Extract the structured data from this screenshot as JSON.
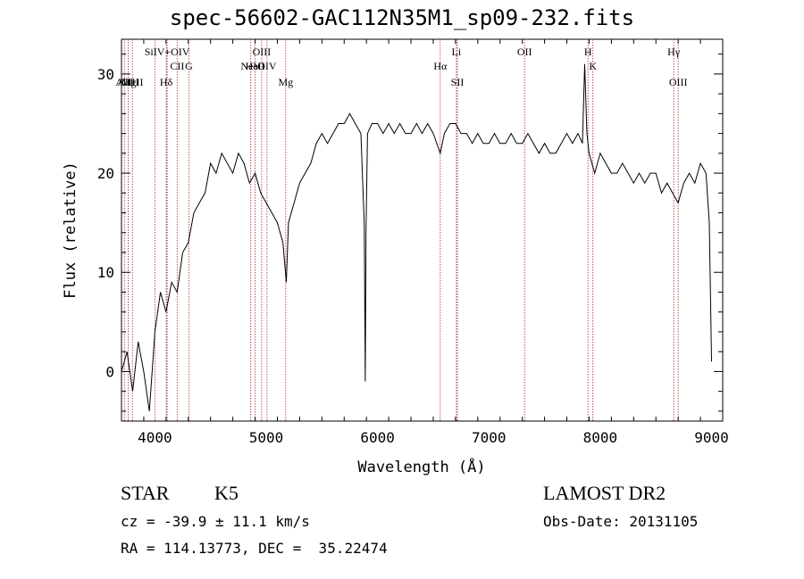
{
  "chart_data": {
    "type": "line",
    "title": "spec-56602-GAC112N35M1_sp09-232.fits",
    "xlabel": "Wavelength (Å)",
    "ylabel": "Flux (relative)",
    "xlim": [
      3700,
      9100
    ],
    "ylim": [
      -5,
      33.5
    ],
    "x_ticks": [
      4000,
      5000,
      6000,
      7000,
      8000,
      9000
    ],
    "y_ticks": [
      0,
      10,
      20,
      30
    ],
    "grid": false,
    "series": [
      {
        "x": [
          3700,
          3750,
          3800,
          3850,
          3900,
          3950,
          4000,
          4050,
          4100,
          4150,
          4200,
          4250,
          4300,
          4350,
          4400,
          4450,
          4500,
          4550,
          4600,
          4650,
          4700,
          4750,
          4800,
          4850,
          4900,
          4950,
          5000,
          5050,
          5100,
          5150,
          5180,
          5200,
          5250,
          5300,
          5350,
          5400,
          5450,
          5500,
          5550,
          5600,
          5650,
          5700,
          5750,
          5800,
          5850,
          5880,
          5890,
          5896,
          5910,
          5950,
          6000,
          6050,
          6100,
          6150,
          6200,
          6250,
          6300,
          6350,
          6400,
          6450,
          6500,
          6563,
          6600,
          6650,
          6700,
          6750,
          6800,
          6850,
          6900,
          6950,
          7000,
          7050,
          7100,
          7150,
          7200,
          7250,
          7300,
          7350,
          7400,
          7450,
          7500,
          7550,
          7600,
          7650,
          7700,
          7750,
          7800,
          7840,
          7860,
          7880,
          7900,
          7950,
          8000,
          8050,
          8100,
          8150,
          8200,
          8250,
          8300,
          8350,
          8400,
          8450,
          8500,
          8550,
          8600,
          8650,
          8700,
          8750,
          8800,
          8850,
          8900,
          8950,
          8980,
          9000
        ],
        "y": [
          0,
          2,
          -2,
          3,
          0,
          -4,
          4,
          8,
          6,
          9,
          8,
          12,
          13,
          16,
          17,
          18,
          21,
          20,
          22,
          21,
          20,
          22,
          21,
          19,
          20,
          18,
          17,
          16,
          15,
          13,
          9,
          15,
          17,
          19,
          20,
          21,
          23,
          24,
          23,
          24,
          25,
          25,
          26,
          25,
          24,
          15,
          -1,
          14,
          24,
          25,
          25,
          24,
          25,
          24,
          25,
          24,
          24,
          25,
          24,
          25,
          24,
          22,
          24,
          25,
          25,
          24,
          24,
          23,
          24,
          23,
          23,
          24,
          23,
          23,
          24,
          23,
          23,
          24,
          23,
          22,
          23,
          22,
          22,
          23,
          24,
          23,
          24,
          23,
          31,
          24,
          22,
          20,
          22,
          21,
          20,
          20,
          21,
          20,
          19,
          20,
          19,
          20,
          20,
          18,
          19,
          18,
          17,
          19,
          20,
          19,
          21,
          20,
          15,
          1
        ]
      }
    ],
    "lines": [
      {
        "x": 3727,
        "label": "AlII",
        "row": 3
      },
      {
        "x": 3760,
        "label": "AlIII",
        "row": 3
      },
      {
        "x": 3798,
        "label": "MgII",
        "row": 3
      },
      {
        "x": 4000,
        "label": "",
        "row": 0
      },
      {
        "x": 4102,
        "label": "Hδ",
        "row": 3
      },
      {
        "x": 4110,
        "label": "SiIV+OIV",
        "row": 1
      },
      {
        "x": 4200,
        "label": "CII",
        "row": 2
      },
      {
        "x": 4305,
        "label": "G",
        "row": 2
      },
      {
        "x": 4861,
        "label": "NeV",
        "row": 2
      },
      {
        "x": 4900,
        "label": "HeII",
        "row": 2
      },
      {
        "x": 4959,
        "label": "OIII",
        "row": 1
      },
      {
        "x": 5007,
        "label": "OIV",
        "row": 2
      },
      {
        "x": 5175,
        "label": "Mg",
        "row": 3
      },
      {
        "x": 6563,
        "label": "Hα",
        "row": 2
      },
      {
        "x": 6708,
        "label": "Li",
        "row": 1
      },
      {
        "x": 6717,
        "label": "SII",
        "row": 3
      },
      {
        "x": 7320,
        "label": "OII",
        "row": 1
      },
      {
        "x": 7890,
        "label": "H",
        "row": 1
      },
      {
        "x": 7934,
        "label": "K",
        "row": 2
      },
      {
        "x": 8660,
        "label": "Hγ",
        "row": 1
      },
      {
        "x": 8700,
        "label": "OIII",
        "row": 3
      }
    ]
  },
  "info": {
    "object_class": "STAR",
    "subclass": "K5",
    "survey": "LAMOST DR2",
    "cz": "cz = -39.9 ± 11.1 km/s",
    "obs_date": "Obs-Date: 20131105",
    "coords": "RA = 114.13773, DEC =  35.22474"
  },
  "colors": {
    "spectrum": "#000000",
    "line_markers": "#b22222"
  }
}
